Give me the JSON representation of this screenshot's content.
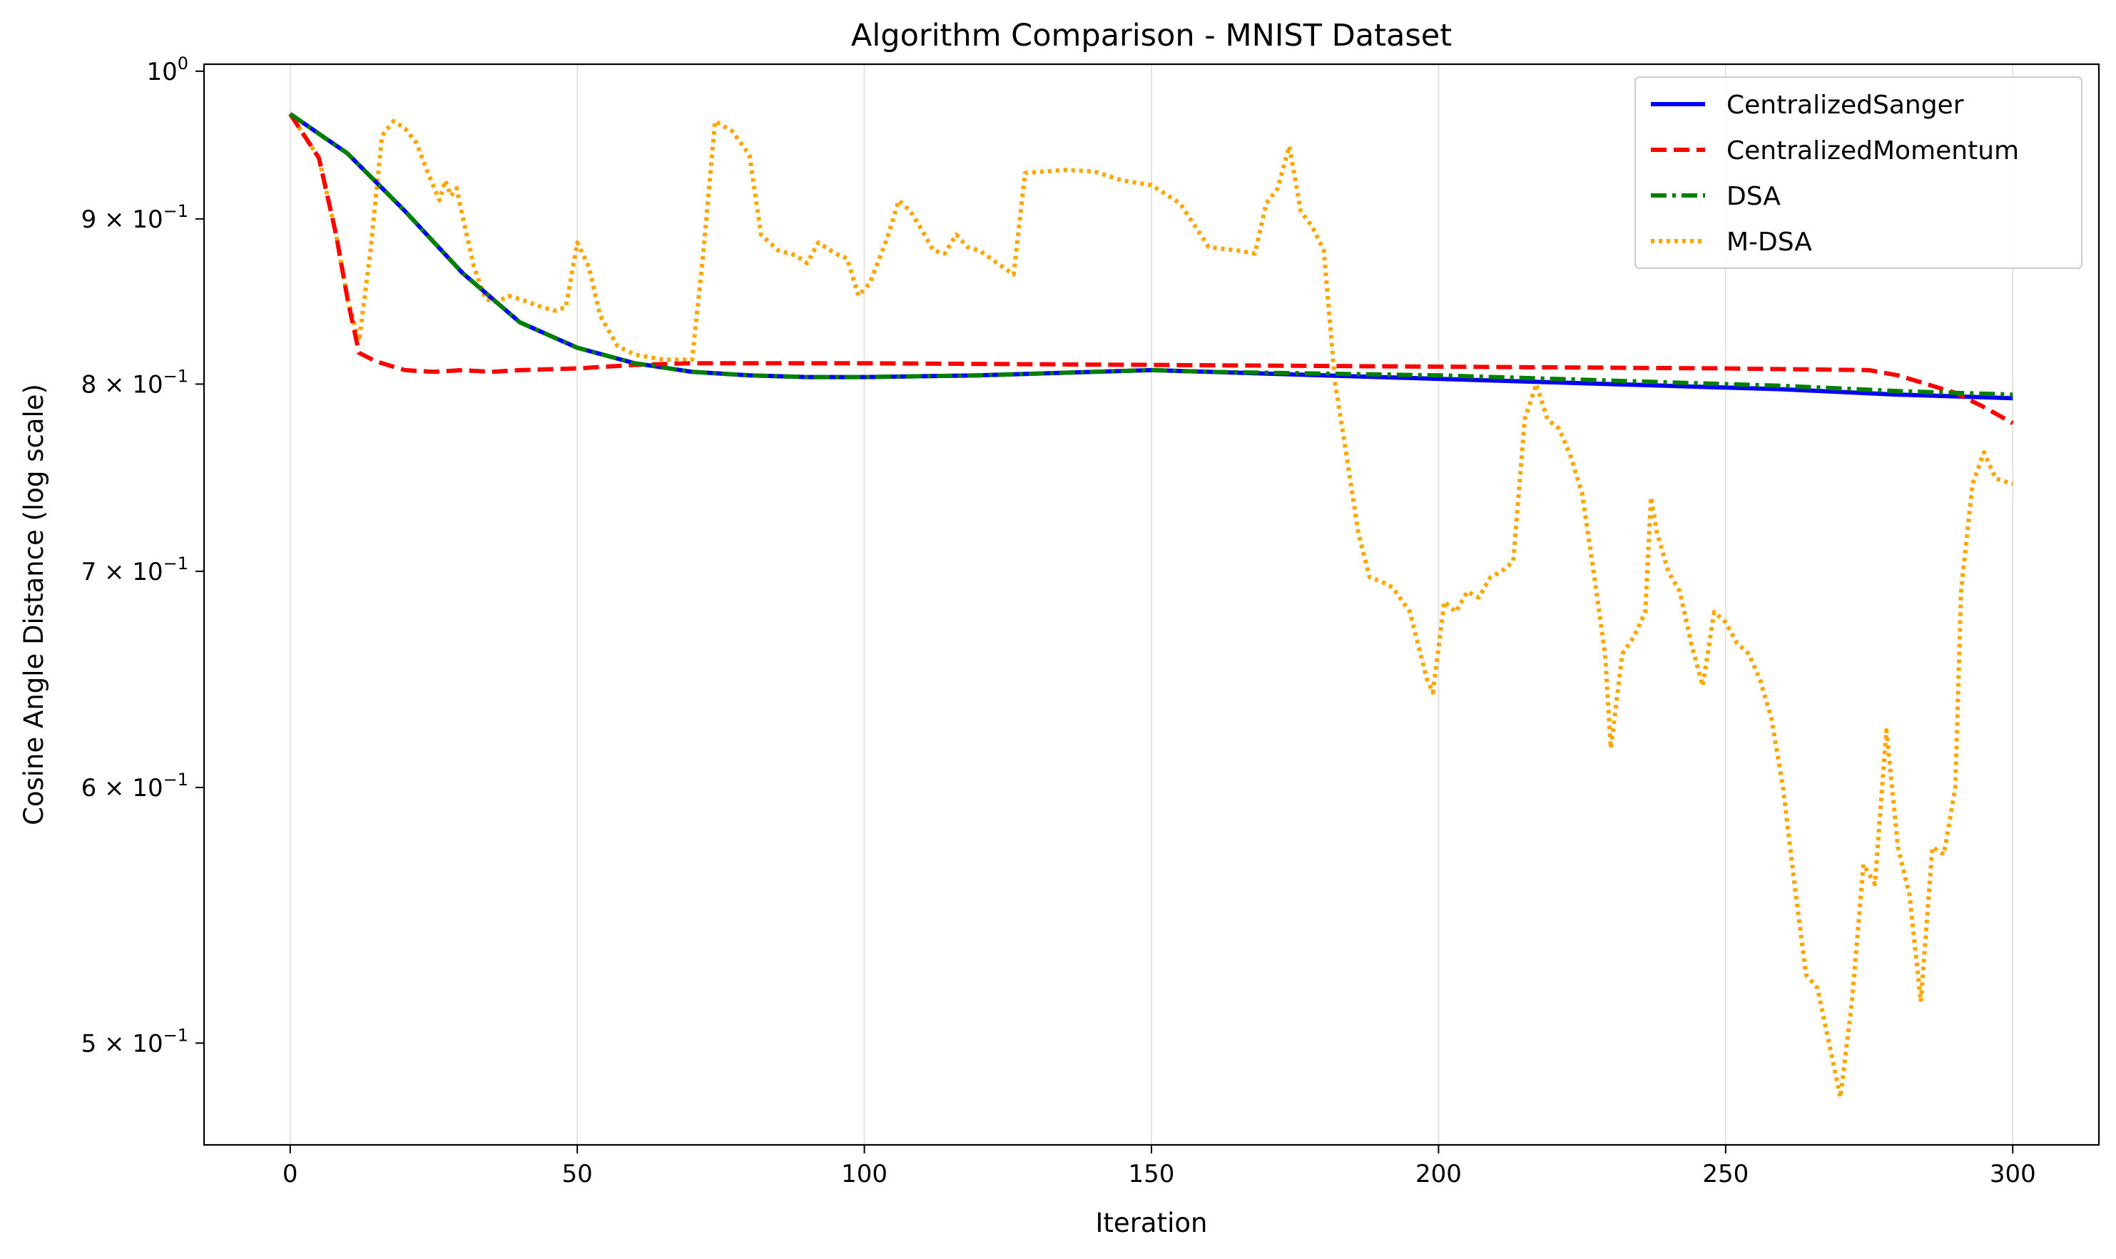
{
  "chart_data": {
    "type": "line",
    "title": "Algorithm Comparison - MNIST Dataset",
    "xlabel": "Iteration",
    "ylabel": "Cosine Angle Distance (log scale)",
    "xscale": "linear",
    "yscale": "log",
    "xlim": [
      -15,
      315
    ],
    "ylim": [
      0.465,
      1.005
    ],
    "grid": "vertical gridlines at x ticks",
    "legend_position": "top-right",
    "x_ticks": [
      0,
      50,
      100,
      150,
      200,
      250,
      300
    ],
    "x_tick_labels": [
      "0",
      "50",
      "100",
      "150",
      "200",
      "250",
      "300"
    ],
    "y_ticks": [
      {
        "value": 1.0,
        "base": "10",
        "exp": "0"
      },
      {
        "value": 0.9,
        "base": "9 × 10",
        "exp": "−1"
      },
      {
        "value": 0.8,
        "base": "8 × 10",
        "exp": "−1"
      },
      {
        "value": 0.7,
        "base": "7 × 10",
        "exp": "−1"
      },
      {
        "value": 0.6,
        "base": "6 × 10",
        "exp": "−1"
      },
      {
        "value": 0.5,
        "base": "5 × 10",
        "exp": "−1"
      }
    ],
    "series": [
      {
        "name": "CentralizedSanger",
        "color": "#0000ff",
        "style": "solid",
        "points": [
          [
            0,
            0.97
          ],
          [
            10,
            0.943
          ],
          [
            20,
            0.905
          ],
          [
            30,
            0.866
          ],
          [
            40,
            0.836
          ],
          [
            50,
            0.821
          ],
          [
            60,
            0.812
          ],
          [
            70,
            0.807
          ],
          [
            80,
            0.805
          ],
          [
            90,
            0.804
          ],
          [
            100,
            0.804
          ],
          [
            120,
            0.805
          ],
          [
            140,
            0.807
          ],
          [
            150,
            0.808
          ],
          [
            160,
            0.807
          ],
          [
            180,
            0.805
          ],
          [
            200,
            0.803
          ],
          [
            220,
            0.801
          ],
          [
            240,
            0.799
          ],
          [
            260,
            0.797
          ],
          [
            280,
            0.794
          ],
          [
            300,
            0.792
          ]
        ]
      },
      {
        "name": "CentralizedMomentum",
        "color": "#ff0000",
        "style": "dashed",
        "points": [
          [
            0,
            0.97
          ],
          [
            5,
            0.94
          ],
          [
            8,
            0.89
          ],
          [
            10,
            0.85
          ],
          [
            12,
            0.818
          ],
          [
            15,
            0.813
          ],
          [
            20,
            0.808
          ],
          [
            25,
            0.807
          ],
          [
            30,
            0.808
          ],
          [
            35,
            0.807
          ],
          [
            40,
            0.808
          ],
          [
            50,
            0.809
          ],
          [
            60,
            0.811
          ],
          [
            70,
            0.812
          ],
          [
            100,
            0.812
          ],
          [
            150,
            0.811
          ],
          [
            200,
            0.81
          ],
          [
            250,
            0.809
          ],
          [
            275,
            0.808
          ],
          [
            280,
            0.805
          ],
          [
            285,
            0.8
          ],
          [
            290,
            0.795
          ],
          [
            295,
            0.787
          ],
          [
            300,
            0.778
          ]
        ]
      },
      {
        "name": "DSA",
        "color": "#008000",
        "style": "dashdot",
        "points": [
          [
            0,
            0.97
          ],
          [
            10,
            0.943
          ],
          [
            20,
            0.905
          ],
          [
            30,
            0.866
          ],
          [
            40,
            0.836
          ],
          [
            50,
            0.821
          ],
          [
            60,
            0.812
          ],
          [
            70,
            0.807
          ],
          [
            80,
            0.805
          ],
          [
            90,
            0.804
          ],
          [
            100,
            0.804
          ],
          [
            120,
            0.805
          ],
          [
            140,
            0.807
          ],
          [
            150,
            0.808
          ],
          [
            160,
            0.807
          ],
          [
            180,
            0.806
          ],
          [
            200,
            0.805
          ],
          [
            220,
            0.803
          ],
          [
            240,
            0.801
          ],
          [
            260,
            0.799
          ],
          [
            280,
            0.796
          ],
          [
            300,
            0.794
          ]
        ]
      },
      {
        "name": "M-DSA",
        "color": "#ffa500",
        "style": "dotted",
        "points": [
          [
            0,
            0.97
          ],
          [
            5,
            0.94
          ],
          [
            8,
            0.89
          ],
          [
            10,
            0.85
          ],
          [
            12,
            0.825
          ],
          [
            14,
            0.88
          ],
          [
            16,
            0.955
          ],
          [
            18,
            0.965
          ],
          [
            20,
            0.96
          ],
          [
            22,
            0.95
          ],
          [
            24,
            0.93
          ],
          [
            26,
            0.912
          ],
          [
            27,
            0.925
          ],
          [
            28,
            0.915
          ],
          [
            29,
            0.92
          ],
          [
            30,
            0.902
          ],
          [
            32,
            0.87
          ],
          [
            34,
            0.85
          ],
          [
            36,
            0.848
          ],
          [
            38,
            0.852
          ],
          [
            40,
            0.85
          ],
          [
            44,
            0.845
          ],
          [
            46,
            0.843
          ],
          [
            48,
            0.845
          ],
          [
            50,
            0.885
          ],
          [
            52,
            0.87
          ],
          [
            54,
            0.84
          ],
          [
            57,
            0.822
          ],
          [
            60,
            0.817
          ],
          [
            65,
            0.814
          ],
          [
            70,
            0.814
          ],
          [
            72,
            0.88
          ],
          [
            74,
            0.965
          ],
          [
            77,
            0.958
          ],
          [
            80,
            0.942
          ],
          [
            82,
            0.89
          ],
          [
            85,
            0.88
          ],
          [
            88,
            0.877
          ],
          [
            90,
            0.872
          ],
          [
            92,
            0.885
          ],
          [
            95,
            0.878
          ],
          [
            97,
            0.875
          ],
          [
            99,
            0.852
          ],
          [
            101,
            0.86
          ],
          [
            104,
            0.888
          ],
          [
            106,
            0.912
          ],
          [
            108,
            0.905
          ],
          [
            110,
            0.893
          ],
          [
            112,
            0.88
          ],
          [
            114,
            0.878
          ],
          [
            116,
            0.89
          ],
          [
            118,
            0.882
          ],
          [
            120,
            0.88
          ],
          [
            122,
            0.875
          ],
          [
            124,
            0.87
          ],
          [
            126,
            0.865
          ],
          [
            128,
            0.93
          ],
          [
            135,
            0.932
          ],
          [
            140,
            0.931
          ],
          [
            145,
            0.925
          ],
          [
            150,
            0.922
          ],
          [
            155,
            0.91
          ],
          [
            160,
            0.882
          ],
          [
            165,
            0.88
          ],
          [
            168,
            0.878
          ],
          [
            170,
            0.91
          ],
          [
            172,
            0.92
          ],
          [
            174,
            0.948
          ],
          [
            176,
            0.905
          ],
          [
            178,
            0.895
          ],
          [
            180,
            0.88
          ],
          [
            182,
            0.8
          ],
          [
            184,
            0.76
          ],
          [
            186,
            0.72
          ],
          [
            188,
            0.697
          ],
          [
            190,
            0.695
          ],
          [
            192,
            0.692
          ],
          [
            195,
            0.68
          ],
          [
            198,
            0.648
          ],
          [
            199,
            0.642
          ],
          [
            201,
            0.685
          ],
          [
            203,
            0.68
          ],
          [
            205,
            0.69
          ],
          [
            207,
            0.687
          ],
          [
            209,
            0.697
          ],
          [
            211,
            0.7
          ],
          [
            213,
            0.705
          ],
          [
            215,
            0.78
          ],
          [
            217,
            0.8
          ],
          [
            219,
            0.78
          ],
          [
            221,
            0.775
          ],
          [
            223,
            0.76
          ],
          [
            225,
            0.74
          ],
          [
            227,
            0.7
          ],
          [
            229,
            0.66
          ],
          [
            230,
            0.617
          ],
          [
            232,
            0.66
          ],
          [
            234,
            0.668
          ],
          [
            236,
            0.68
          ],
          [
            237,
            0.738
          ],
          [
            238,
            0.72
          ],
          [
            240,
            0.7
          ],
          [
            242,
            0.69
          ],
          [
            244,
            0.665
          ],
          [
            246,
            0.645
          ],
          [
            248,
            0.68
          ],
          [
            250,
            0.675
          ],
          [
            252,
            0.665
          ],
          [
            254,
            0.66
          ],
          [
            256,
            0.648
          ],
          [
            258,
            0.63
          ],
          [
            260,
            0.6
          ],
          [
            262,
            0.56
          ],
          [
            264,
            0.525
          ],
          [
            266,
            0.52
          ],
          [
            268,
            0.5
          ],
          [
            270,
            0.481
          ],
          [
            272,
            0.515
          ],
          [
            274,
            0.568
          ],
          [
            276,
            0.56
          ],
          [
            278,
            0.625
          ],
          [
            280,
            0.575
          ],
          [
            282,
            0.556
          ],
          [
            284,
            0.515
          ],
          [
            286,
            0.575
          ],
          [
            288,
            0.572
          ],
          [
            290,
            0.6
          ],
          [
            291,
            0.69
          ],
          [
            293,
            0.745
          ],
          [
            295,
            0.762
          ],
          [
            297,
            0.748
          ],
          [
            300,
            0.745
          ]
        ]
      }
    ]
  }
}
